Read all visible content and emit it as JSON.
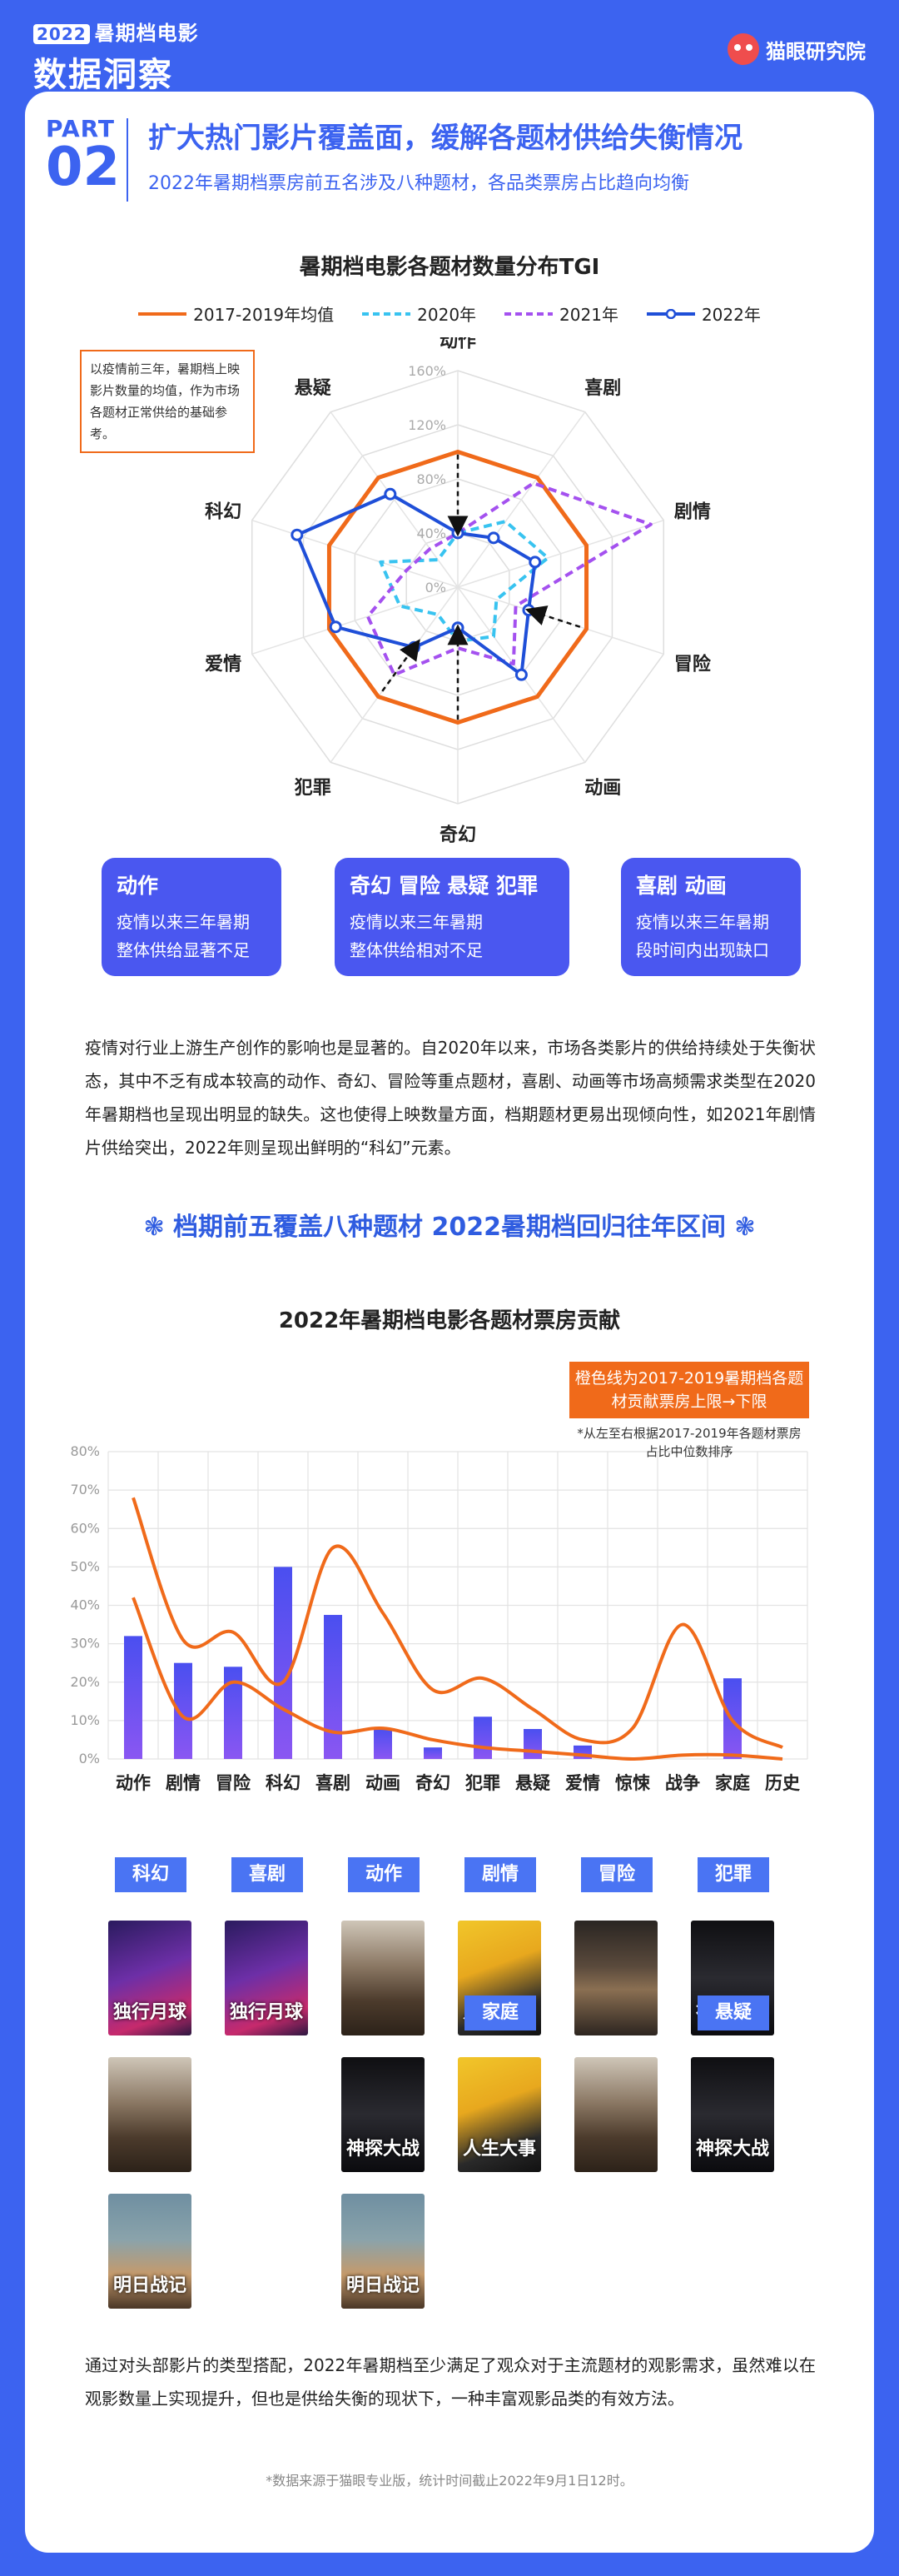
{
  "header": {
    "year": "2022",
    "line1": "暑期档电影",
    "line2": "数据洞察",
    "brand": "猫眼研究院"
  },
  "part": {
    "label": "PART",
    "num": "02",
    "title": "扩大热门影片覆盖面，缓解各题材供给失衡情况",
    "subtitle": "2022年暑期档票房前五名涉及八种题材，各品类票房占比趋向均衡"
  },
  "radar_note": "以疫情前三年，暑期档上映影片数量的均值，作为市场各题材正常供给的基础参考。",
  "pills": [
    {
      "title": "动作",
      "desc": [
        "疫情以来三年暑期",
        "整体供给显著不足"
      ]
    },
    {
      "title": "奇幻 冒险 悬疑 犯罪",
      "desc": [
        "疫情以来三年暑期",
        "整体供给相对不足"
      ]
    },
    {
      "title": "喜剧 动画",
      "desc": [
        "疫情以来三年暑期",
        "段时间内出现缺口"
      ]
    }
  ],
  "para1": "疫情对行业上游生产创作的影响也是显著的。自2020年以来，市场各类影片的供给持续处于失衡状态，其中不乏有成本较高的动作、奇幻、冒险等重点题材，喜剧、动画等市场高频需求类型在2020年暑期档也呈现出明显的缺失。这也使得上映数量方面，档期题材更易出现倾向性，如2021年剧情片供给突出，2022年则呈现出鲜明的“科幻”元素。",
  "banner": "❃ 档期前五覆盖八种题材 2022暑期档回归往年区间 ❃",
  "callout": "橙色线为2017-2019暑期档各题材贡献票房上限→下限",
  "callnote": "*从左至右根据2017-2019年各题材票房占比中位数排序",
  "genre_groups": [
    {
      "tag": "科幻",
      "posters": [
        "独行月球",
        "",
        "明日战记"
      ]
    },
    {
      "tag": "喜剧",
      "posters": [
        "独行月球"
      ]
    },
    {
      "tag": "动作",
      "posters": [
        "",
        "神探大战",
        "明日战记"
      ]
    },
    {
      "tag": "剧情",
      "posters": [
        "人生大事"
      ]
    },
    {
      "tag": "冒险",
      "posters": [
        "",
        ""
      ]
    },
    {
      "tag": "犯罪",
      "posters": [
        "神探大战"
      ]
    },
    {
      "tag": "家庭",
      "posters": [
        "人生大事"
      ]
    },
    {
      "tag": "悬疑",
      "posters": [
        "神探大战"
      ]
    }
  ],
  "para2": "通过对头部影片的类型搭配，2022年暑期档至少满足了观众对于主流题材的观影需求，虽然难以在观影数量上实现提升，但也是供给失衡的现状下，一种丰富观影品类的有效方法。",
  "footer": "*数据来源于猫眼专业版，统计时间截止2022年9月1日12时。",
  "colors": {
    "accent": "#3c63f0",
    "orange": "#f06a1a",
    "cyan": "#38c3f0",
    "purple": "#a451ef",
    "blue": "#1f4fd8",
    "bar": "#5a4df0"
  },
  "chart_data": [
    {
      "type": "radar",
      "title": "暑期档电影各题材数量分布TGI",
      "categories": [
        "动作",
        "喜剧",
        "剧情",
        "冒险",
        "动画",
        "奇幻",
        "犯罪",
        "爱情",
        "科幻",
        "悬疑"
      ],
      "ticks": [
        0,
        40,
        80,
        120,
        160
      ],
      "tick_labels": [
        "0%",
        "40%",
        "80%",
        "120%",
        "160%"
      ],
      "rmax": 160,
      "series": [
        {
          "name": "2017-2019年均值",
          "values": [
            100,
            100,
            100,
            100,
            100,
            100,
            100,
            100,
            100,
            100
          ],
          "style": "solid",
          "color": "#f06a1a"
        },
        {
          "name": "2020年",
          "values": [
            40,
            60,
            70,
            30,
            45,
            40,
            25,
            45,
            60,
            25
          ],
          "style": "dashed",
          "color": "#38c3f0"
        },
        {
          "name": "2021年",
          "values": [
            40,
            95,
            150,
            45,
            70,
            45,
            80,
            70,
            40,
            35
          ],
          "style": "dashed",
          "color": "#a451ef"
        },
        {
          "name": "2022年",
          "values": [
            40,
            45,
            60,
            55,
            80,
            30,
            55,
            95,
            125,
            85
          ],
          "style": "solid-marker",
          "color": "#1f4fd8"
        }
      ]
    },
    {
      "type": "bar",
      "title": "2022年暑期档电影各题材票房贡献",
      "categories": [
        "动作",
        "剧情",
        "冒险",
        "科幻",
        "喜剧",
        "动画",
        "奇幻",
        "犯罪",
        "悬疑",
        "爱情",
        "惊悚",
        "战争",
        "家庭",
        "历史"
      ],
      "values": [
        32,
        25,
        24,
        50,
        37.5,
        8,
        3,
        11,
        7.8,
        3.5,
        0,
        0,
        21,
        0
      ],
      "series_lines": [
        {
          "name": "上限",
          "values": [
            68,
            31,
            33,
            20,
            55,
            38,
            18,
            21,
            13,
            5,
            8,
            35,
            10,
            3
          ]
        },
        {
          "name": "下限",
          "values": [
            42,
            11,
            20,
            13,
            7,
            8,
            5,
            3,
            2,
            1,
            0,
            1,
            1,
            0
          ]
        }
      ],
      "ylim": [
        0,
        80
      ],
      "yticks": [
        0,
        10,
        20,
        30,
        40,
        50,
        60,
        70,
        80
      ],
      "ytick_labels": [
        "0%",
        "10%",
        "20%",
        "30%",
        "40%",
        "50%",
        "60%",
        "70%",
        "80%"
      ]
    }
  ]
}
